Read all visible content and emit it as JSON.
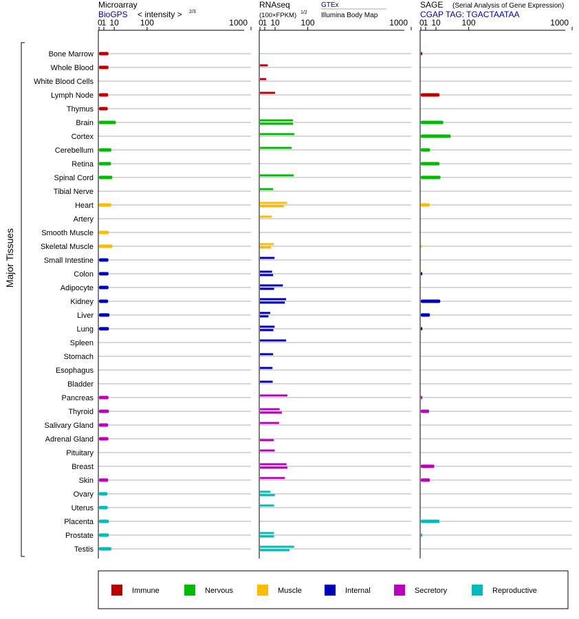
{
  "y_axis_title": "Major Tissues",
  "panels": {
    "microarray": {
      "title": "Microarray",
      "source": "BioGPS",
      "unit_pre": "< intensity >",
      "unit_exp": "2/3"
    },
    "rnaseq": {
      "title": "RNAseq",
      "unit_pre": "(100×FPKM)",
      "unit_exp": "1/2",
      "source_a": "GTEx",
      "source_b": "Illumina Body Map"
    },
    "sage": {
      "title": "SAGE",
      "subtitle": "(Serial Analysis of Gene Expression)",
      "tag": "CGAP TAG: TGACTAATAA"
    }
  },
  "legend": [
    {
      "label": "Immune",
      "color": "#bb0000"
    },
    {
      "label": "Nervous",
      "color": "#00bb00"
    },
    {
      "label": "Muscle",
      "color": "#ffbb00"
    },
    {
      "label": "Internal",
      "color": "#0000bb"
    },
    {
      "label": "Secretory",
      "color": "#bb00bb"
    },
    {
      "label": "Reproductive",
      "color": "#00bbbb"
    }
  ],
  "chart_data": {
    "type": "bar",
    "orientation": "horizontal",
    "x_scale": "sqrt",
    "x_ticks": [
      0,
      1,
      10,
      100,
      1000
    ],
    "x_range": [
      0,
      1000
    ],
    "categories": [
      "Bone Marrow",
      "Whole Blood",
      "White Blood Cells",
      "Lymph Node",
      "Thymus",
      "Brain",
      "Cortex",
      "Cerebellum",
      "Retina",
      "Spinal Cord",
      "Tibial Nerve",
      "Heart",
      "Artery",
      "Smooth Muscle",
      "Skeletal Muscle",
      "Small Intestine",
      "Colon",
      "Adipocyte",
      "Kidney",
      "Liver",
      "Lung",
      "Spleen",
      "Stomach",
      "Esophagus",
      "Bladder",
      "Pancreas",
      "Thyroid",
      "Salivary Gland",
      "Adrenal Gland",
      "Pituitary",
      "Breast",
      "Skin",
      "Ovary",
      "Uterus",
      "Placenta",
      "Prostate",
      "Testis"
    ],
    "groups": [
      "Immune",
      "Immune",
      "Immune",
      "Immune",
      "Immune",
      "Nervous",
      "Nervous",
      "Nervous",
      "Nervous",
      "Nervous",
      "Nervous",
      "Muscle",
      "Muscle",
      "Muscle",
      "Muscle",
      "Internal",
      "Internal",
      "Internal",
      "Internal",
      "Internal",
      "Internal",
      "Internal",
      "Internal",
      "Internal",
      "Internal",
      "Secretory",
      "Secretory",
      "Secretory",
      "Secretory",
      "Secretory",
      "Secretory",
      "Secretory",
      "Reproductive",
      "Reproductive",
      "Reproductive",
      "Reproductive",
      "Reproductive"
    ],
    "series": [
      {
        "name": "Microarray",
        "values": [
          3.9,
          3.9,
          null,
          3.6,
          3.3,
          12.3,
          null,
          6.6,
          6.2,
          7.6,
          null,
          6.6,
          null,
          4.1,
          7.8,
          3.8,
          3.9,
          3.9,
          3.6,
          4.7,
          4.2,
          null,
          null,
          null,
          null,
          3.9,
          4.2,
          3.6,
          3.8,
          null,
          null,
          3.6,
          3.1,
          3.3,
          4.2,
          4.2,
          6.6
        ]
      },
      {
        "name": "RNAseq GTEx",
        "values": [
          null,
          2.7,
          1.7,
          10.1,
          null,
          48,
          52,
          44,
          null,
          50,
          7.5,
          32,
          6.1,
          null,
          8.3,
          9.3,
          6.4,
          23,
          30,
          4.6,
          9.4,
          30,
          7.6,
          6.9,
          7.1,
          33,
          17,
          16,
          null,
          9.6,
          31,
          27,
          4.8,
          8.8,
          null,
          8.6,
          51
        ]
      },
      {
        "name": "RNAseq Illumina",
        "values": [
          null,
          null,
          null,
          null,
          null,
          48,
          null,
          null,
          null,
          null,
          null,
          25,
          null,
          null,
          5.4,
          null,
          7.6,
          8.8,
          27,
          3.2,
          7.9,
          null,
          null,
          null,
          null,
          null,
          21,
          null,
          8.3,
          null,
          33,
          null,
          9.8,
          null,
          null,
          8.6,
          38
        ]
      },
      {
        "name": "SAGE",
        "values": [
          0.1,
          null,
          null,
          15.1,
          null,
          22.1,
          38.9,
          3.7,
          15.1,
          16.9,
          null,
          3.4,
          null,
          null,
          0.03,
          null,
          0.1,
          null,
          16.5,
          3.6,
          0.1,
          null,
          null,
          null,
          null,
          0.1,
          3.0,
          null,
          null,
          null,
          7.9,
          3.6,
          null,
          null,
          15.1,
          0.1,
          null
        ]
      }
    ]
  }
}
